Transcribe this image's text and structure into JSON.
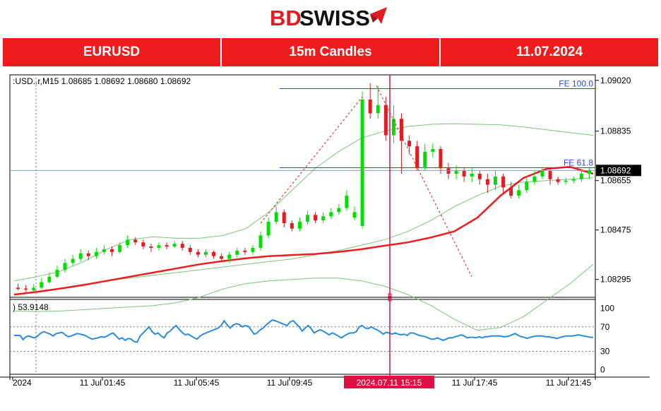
{
  "brand": {
    "text_left": "BD",
    "text_right": "SWISS",
    "accent_color": "#e31b23",
    "icon": "arrow-icon"
  },
  "header": {
    "symbol": "EURUSD",
    "timeframe": "15m Candles",
    "date": "11.07.2024"
  },
  "colors": {
    "bull": "#00e000",
    "bear": "#e31b23",
    "ma": "#ee1c1c",
    "bands": "#7cc47c",
    "rsi": "#2b8cdf",
    "fib": "#3344ee",
    "cursor": "#dd1144"
  },
  "chart_data": [
    {
      "type": "candlestick",
      "info_label": ":USD..r,M15  1.08685 1.08692 1.08680 1.08692",
      "ylim": [
        1.0823,
        1.0904
      ],
      "y_ticks": [
        1.0902,
        1.08835,
        1.08655,
        1.08475,
        1.08295
      ],
      "y_tick_labels": [
        "1.09020",
        "1.08835",
        "1.08655",
        "1.08475",
        "1.08295"
      ],
      "current_price": 1.08692,
      "current_price_label": "1.08692",
      "x_tick_labels": [
        "2024",
        "11 Jul 01:45",
        "11 Jul 05:45",
        "11 Jul 09:45",
        "2024.07.11 15:15",
        "11 Jul 17:45",
        "11 Jul 21:45"
      ],
      "highlighted_time": "2024.07.11 15:15",
      "fib_levels": [
        {
          "label": "FE 100.0",
          "value": 1.0899
        },
        {
          "label": "FE 61.8",
          "value": 1.08702
        }
      ],
      "candles": [
        [
          1.08265,
          1.0826,
          1.0828,
          1.08255
        ],
        [
          1.08262,
          1.08258,
          1.08275,
          1.0825
        ],
        [
          1.08255,
          1.08265,
          1.08278,
          1.0825
        ],
        [
          1.08265,
          1.08285,
          1.083,
          1.0826
        ],
        [
          1.08285,
          1.08305,
          1.0832,
          1.0828
        ],
        [
          1.08305,
          1.0833,
          1.08345,
          1.083
        ],
        [
          1.0833,
          1.08355,
          1.0837,
          1.0832
        ],
        [
          1.08355,
          1.0837,
          1.08385,
          1.08345
        ],
        [
          1.0837,
          1.0839,
          1.08405,
          1.0836
        ],
        [
          1.0839,
          1.0838,
          1.084,
          1.08365
        ],
        [
          1.0838,
          1.08395,
          1.0841,
          1.0837
        ],
        [
          1.08395,
          1.08405,
          1.0842,
          1.08385
        ],
        [
          1.08405,
          1.08395,
          1.08415,
          1.0838
        ],
        [
          1.08395,
          1.0842,
          1.0843,
          1.0839
        ],
        [
          1.0842,
          1.0844,
          1.08455,
          1.0841
        ],
        [
          1.0844,
          1.0843,
          1.0845,
          1.0842
        ],
        [
          1.0843,
          1.08415,
          1.0844,
          1.08405
        ],
        [
          1.08415,
          1.0841,
          1.08425,
          1.08395
        ],
        [
          1.0841,
          1.0842,
          1.0843,
          1.084
        ],
        [
          1.0842,
          1.08415,
          1.0843,
          1.08405
        ],
        [
          1.08415,
          1.08425,
          1.08435,
          1.0841
        ],
        [
          1.08425,
          1.0841,
          1.08435,
          1.084
        ],
        [
          1.0841,
          1.08395,
          1.0842,
          1.08385
        ],
        [
          1.08395,
          1.08385,
          1.08405,
          1.08375
        ],
        [
          1.08385,
          1.08395,
          1.08405,
          1.08375
        ],
        [
          1.08395,
          1.0838,
          1.084,
          1.0837
        ],
        [
          1.0838,
          1.0837,
          1.0839,
          1.0836
        ],
        [
          1.0837,
          1.08385,
          1.08395,
          1.08355
        ],
        [
          1.08385,
          1.084,
          1.0841,
          1.08375
        ],
        [
          1.084,
          1.08395,
          1.0841,
          1.08385
        ],
        [
          1.08395,
          1.0841,
          1.0842,
          1.08385
        ],
        [
          1.0841,
          1.08455,
          1.0847,
          1.084
        ],
        [
          1.08455,
          1.08505,
          1.0852,
          1.08445
        ],
        [
          1.08505,
          1.0854,
          1.0856,
          1.08495
        ],
        [
          1.0854,
          1.085,
          1.0855,
          1.08485
        ],
        [
          1.085,
          1.0848,
          1.0851,
          1.0847
        ],
        [
          1.0848,
          1.08505,
          1.0852,
          1.0847
        ],
        [
          1.08505,
          1.0853,
          1.08545,
          1.08495
        ],
        [
          1.0853,
          1.0851,
          1.0854,
          1.085
        ],
        [
          1.0851,
          1.08525,
          1.0854,
          1.085
        ],
        [
          1.08525,
          1.0854,
          1.08555,
          1.08515
        ],
        [
          1.0854,
          1.08555,
          1.0857,
          1.0853
        ],
        [
          1.08555,
          1.086,
          1.0862,
          1.08545
        ],
        [
          1.0852,
          1.0854,
          1.0856,
          1.0851
        ],
        [
          1.0849,
          1.0895,
          1.0898,
          1.0848
        ],
        [
          1.0895,
          1.089,
          1.0901,
          1.0888
        ],
        [
          1.089,
          1.0893,
          1.09,
          1.0888
        ],
        [
          1.0893,
          1.0882,
          1.0896,
          1.088
        ],
        [
          1.0882,
          1.0888,
          1.0893,
          1.0879
        ],
        [
          1.0888,
          1.088,
          1.089,
          1.0868
        ],
        [
          1.088,
          1.0878,
          1.0882,
          1.0875
        ],
        [
          1.0878,
          1.087,
          1.088,
          1.0869
        ],
        [
          1.087,
          1.0876,
          1.0879,
          1.0869
        ],
        [
          1.0876,
          1.0877,
          1.0879,
          1.0874
        ],
        [
          1.0877,
          1.087,
          1.0878,
          1.0868
        ],
        [
          1.087,
          1.0868,
          1.0872,
          1.0866
        ],
        [
          1.0868,
          1.0869,
          1.0871,
          1.0866
        ],
        [
          1.0869,
          1.0867,
          1.087,
          1.0865
        ],
        [
          1.0867,
          1.0868,
          1.087,
          1.0865
        ],
        [
          1.0868,
          1.0866,
          1.0869,
          1.0864
        ],
        [
          1.0866,
          1.0864,
          1.0868,
          1.0861
        ],
        [
          1.0864,
          1.0867,
          1.0869,
          1.0862
        ],
        [
          1.0867,
          1.0863,
          1.0868,
          1.0861
        ],
        [
          1.0863,
          1.086,
          1.0865,
          1.0859
        ],
        [
          1.086,
          1.0862,
          1.0864,
          1.0859
        ],
        [
          1.0862,
          1.0865,
          1.0867,
          1.0861
        ],
        [
          1.0865,
          1.0867,
          1.0869,
          1.0864
        ],
        [
          1.0867,
          1.0869,
          1.08705,
          1.0866
        ],
        [
          1.0869,
          1.0866,
          1.087,
          1.0864
        ],
        [
          1.0866,
          1.0865,
          1.0867,
          1.0864
        ],
        [
          1.0865,
          1.08655,
          1.08665,
          1.0864
        ],
        [
          1.08655,
          1.0866,
          1.0867,
          1.08645
        ],
        [
          1.0866,
          1.0868,
          1.08695,
          1.0865
        ],
        [
          1.0868,
          1.08692,
          1.087,
          1.0866
        ]
      ],
      "ma": [
        1.0824,
        1.0825,
        1.08262,
        1.08275,
        1.0829,
        1.08305,
        1.0832,
        1.08335,
        1.0835,
        1.08362,
        1.08372,
        1.0838,
        1.08384,
        1.08388,
        1.08395,
        1.08405,
        1.08418,
        1.0843,
        1.08448,
        1.0847,
        1.0852,
        1.086,
        1.08665,
        1.08698,
        1.08705,
        1.0868
      ],
      "bb_upper": [
        1.0829,
        1.08305,
        1.08325,
        1.0836,
        1.08405,
        1.0844,
        1.0845,
        1.08445,
        1.08445,
        1.08455,
        1.0848,
        1.0854,
        1.0862,
        1.087,
        1.0876,
        1.0881,
        1.08835,
        1.08852,
        1.0886,
        1.08862,
        1.0886,
        1.08858,
        1.0885,
        1.0884,
        1.0883,
        1.0882
      ],
      "bb_middle": [
        1.0824,
        1.0825,
        1.08262,
        1.08275,
        1.0829,
        1.083,
        1.0831,
        1.0832,
        1.0833,
        1.0834,
        1.0835,
        1.0836,
        1.0837,
        1.08385,
        1.084,
        1.0842,
        1.0844,
        1.0847,
        1.0851,
        1.0856,
        1.086,
        1.08635,
        1.0865,
        1.08655,
        1.0866,
        1.08665
      ],
      "bb_lower": [
        1.0818,
        1.08178,
        1.0818,
        1.08185,
        1.0819,
        1.08195,
        1.082,
        1.0821,
        1.0823,
        1.0826,
        1.0828,
        1.0829,
        1.08295,
        1.083,
        1.083,
        1.0829,
        1.0827,
        1.0824,
        1.082,
        1.0815,
        1.0811,
        1.0812,
        1.0816,
        1.0822,
        1.0828,
        1.0835
      ]
    },
    {
      "type": "line",
      "name": "RSI",
      "value_label": ") 53.9148",
      "ylim": [
        -5,
        110
      ],
      "y_ticks": [
        100,
        70,
        30,
        0
      ],
      "y_tick_labels": [
        "100",
        "70",
        "30",
        "0"
      ],
      "values": [
        56,
        56,
        56,
        49,
        54,
        55,
        53,
        52,
        56,
        60,
        62,
        60,
        58,
        55,
        59,
        60,
        61,
        57,
        54,
        55,
        57,
        59,
        58,
        57,
        55,
        52,
        50,
        51,
        52,
        54,
        53,
        55,
        58,
        60,
        55,
        50,
        52,
        48,
        51,
        50,
        46,
        45,
        55,
        60,
        65,
        70,
        62,
        58,
        60,
        55,
        52,
        60,
        63,
        68,
        72,
        66,
        61,
        57,
        58,
        55,
        52,
        50,
        55,
        58,
        60,
        62,
        64,
        66,
        68,
        72,
        80,
        73,
        68,
        73,
        75,
        74,
        70,
        72,
        71,
        65,
        58,
        60,
        65,
        68,
        73,
        77,
        81,
        80,
        78,
        76,
        74,
        72,
        78,
        80,
        75,
        70,
        63,
        68,
        72,
        67,
        60,
        63,
        65,
        63,
        60,
        57,
        60,
        58,
        55,
        52,
        55,
        58,
        60,
        60,
        62,
        70,
        72,
        68,
        67,
        70,
        67,
        65,
        62,
        58,
        61,
        60,
        58,
        60,
        58,
        57,
        58,
        56,
        60,
        60,
        58,
        56,
        55,
        54,
        52,
        50,
        50,
        52,
        50,
        48,
        50,
        52,
        52,
        54,
        55,
        57,
        55,
        52,
        53,
        53,
        52,
        54,
        52,
        54,
        54,
        55,
        55,
        55,
        55,
        54,
        54,
        55,
        57,
        59,
        56,
        54,
        53,
        51,
        53,
        54,
        55,
        55,
        55,
        54,
        54,
        53,
        52,
        51,
        53,
        54,
        55,
        55,
        55,
        56,
        57,
        56,
        55,
        54,
        53,
        53
      ]
    }
  ]
}
